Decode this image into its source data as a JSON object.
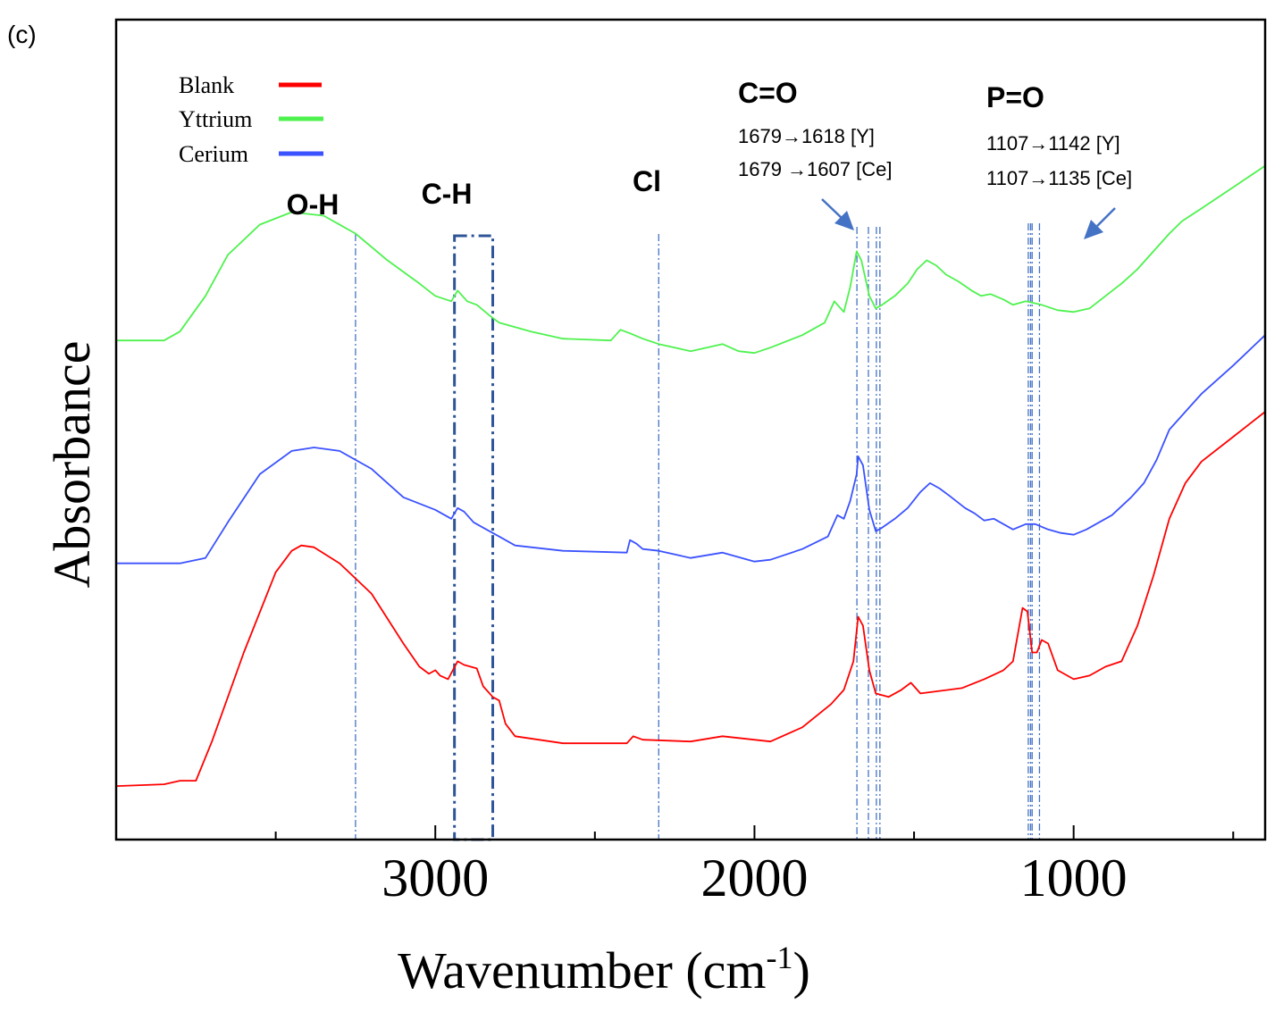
{
  "panel_label": "(c)",
  "chart_data": {
    "type": "line",
    "title": "",
    "xlabel": "Wavenumber (cm",
    "xlabel_superscript": "-1",
    "xlabel_close": ")",
    "ylabel": "Absorbance",
    "xlim": [
      4000,
      400
    ],
    "ylim": [
      0,
      4.6
    ],
    "x_ticks": [
      3000,
      2000,
      1000
    ],
    "x_minor_ticks": [
      3500,
      2500,
      1500,
      500
    ],
    "x_tick_labels": [
      "3000",
      "2000",
      "1000"
    ],
    "grid": false,
    "legend_position": "top-left",
    "series": [
      {
        "name": "Blank",
        "color": "#ff0000",
        "points": [
          [
            4000,
            0.3
          ],
          [
            3850,
            0.31
          ],
          [
            3800,
            0.33
          ],
          [
            3750,
            0.33
          ],
          [
            3700,
            0.55
          ],
          [
            3600,
            1.05
          ],
          [
            3500,
            1.5
          ],
          [
            3450,
            1.62
          ],
          [
            3420,
            1.65
          ],
          [
            3380,
            1.64
          ],
          [
            3300,
            1.55
          ],
          [
            3200,
            1.38
          ],
          [
            3100,
            1.1
          ],
          [
            3050,
            0.97
          ],
          [
            3020,
            0.93
          ],
          [
            3000,
            0.95
          ],
          [
            2985,
            0.92
          ],
          [
            2960,
            0.9
          ],
          [
            2930,
            1.0
          ],
          [
            2910,
            0.98
          ],
          [
            2870,
            0.96
          ],
          [
            2850,
            0.86
          ],
          [
            2820,
            0.8
          ],
          [
            2800,
            0.78
          ],
          [
            2780,
            0.65
          ],
          [
            2750,
            0.58
          ],
          [
            2600,
            0.54
          ],
          [
            2400,
            0.54
          ],
          [
            2380,
            0.58
          ],
          [
            2350,
            0.56
          ],
          [
            2200,
            0.55
          ],
          [
            2100,
            0.58
          ],
          [
            1950,
            0.55
          ],
          [
            1850,
            0.63
          ],
          [
            1760,
            0.76
          ],
          [
            1720,
            0.84
          ],
          [
            1690,
            1.0
          ],
          [
            1675,
            1.25
          ],
          [
            1660,
            1.2
          ],
          [
            1640,
            0.95
          ],
          [
            1620,
            0.82
          ],
          [
            1580,
            0.8
          ],
          [
            1540,
            0.84
          ],
          [
            1510,
            0.88
          ],
          [
            1480,
            0.82
          ],
          [
            1350,
            0.85
          ],
          [
            1280,
            0.9
          ],
          [
            1220,
            0.95
          ],
          [
            1190,
            1.0
          ],
          [
            1160,
            1.3
          ],
          [
            1145,
            1.28
          ],
          [
            1130,
            1.05
          ],
          [
            1115,
            1.05
          ],
          [
            1100,
            1.12
          ],
          [
            1080,
            1.1
          ],
          [
            1050,
            0.95
          ],
          [
            1000,
            0.9
          ],
          [
            950,
            0.92
          ],
          [
            900,
            0.97
          ],
          [
            850,
            1.0
          ],
          [
            800,
            1.2
          ],
          [
            750,
            1.48
          ],
          [
            700,
            1.8
          ],
          [
            650,
            2.0
          ],
          [
            600,
            2.12
          ],
          [
            500,
            2.26
          ],
          [
            400,
            2.4
          ]
        ]
      },
      {
        "name": "Cerium",
        "color": "#3b52ff",
        "points": [
          [
            4000,
            1.55
          ],
          [
            3800,
            1.55
          ],
          [
            3720,
            1.58
          ],
          [
            3650,
            1.78
          ],
          [
            3550,
            2.05
          ],
          [
            3450,
            2.18
          ],
          [
            3380,
            2.2
          ],
          [
            3300,
            2.18
          ],
          [
            3200,
            2.08
          ],
          [
            3100,
            1.92
          ],
          [
            3000,
            1.85
          ],
          [
            2950,
            1.8
          ],
          [
            2930,
            1.86
          ],
          [
            2910,
            1.84
          ],
          [
            2880,
            1.78
          ],
          [
            2850,
            1.75
          ],
          [
            2800,
            1.7
          ],
          [
            2750,
            1.65
          ],
          [
            2600,
            1.62
          ],
          [
            2400,
            1.61
          ],
          [
            2390,
            1.68
          ],
          [
            2370,
            1.66
          ],
          [
            2350,
            1.63
          ],
          [
            2300,
            1.62
          ],
          [
            2200,
            1.58
          ],
          [
            2100,
            1.61
          ],
          [
            2000,
            1.56
          ],
          [
            1950,
            1.57
          ],
          [
            1850,
            1.63
          ],
          [
            1770,
            1.7
          ],
          [
            1740,
            1.82
          ],
          [
            1720,
            1.8
          ],
          [
            1700,
            1.9
          ],
          [
            1680,
            2.05
          ],
          [
            1675,
            2.15
          ],
          [
            1660,
            2.1
          ],
          [
            1640,
            1.85
          ],
          [
            1620,
            1.73
          ],
          [
            1600,
            1.75
          ],
          [
            1560,
            1.8
          ],
          [
            1520,
            1.86
          ],
          [
            1480,
            1.95
          ],
          [
            1450,
            2.0
          ],
          [
            1420,
            1.97
          ],
          [
            1390,
            1.93
          ],
          [
            1340,
            1.86
          ],
          [
            1310,
            1.83
          ],
          [
            1280,
            1.79
          ],
          [
            1250,
            1.8
          ],
          [
            1220,
            1.77
          ],
          [
            1190,
            1.74
          ],
          [
            1150,
            1.77
          ],
          [
            1120,
            1.77
          ],
          [
            1080,
            1.74
          ],
          [
            1040,
            1.72
          ],
          [
            1000,
            1.71
          ],
          [
            960,
            1.74
          ],
          [
            920,
            1.78
          ],
          [
            880,
            1.82
          ],
          [
            820,
            1.92
          ],
          [
            780,
            2.0
          ],
          [
            740,
            2.13
          ],
          [
            700,
            2.3
          ],
          [
            650,
            2.4
          ],
          [
            600,
            2.5
          ],
          [
            500,
            2.66
          ],
          [
            400,
            2.83
          ]
        ]
      },
      {
        "name": "Yttrium",
        "color": "#4ef24e",
        "points": [
          [
            4000,
            2.8
          ],
          [
            3850,
            2.8
          ],
          [
            3800,
            2.85
          ],
          [
            3720,
            3.05
          ],
          [
            3650,
            3.28
          ],
          [
            3550,
            3.45
          ],
          [
            3450,
            3.52
          ],
          [
            3350,
            3.5
          ],
          [
            3250,
            3.4
          ],
          [
            3150,
            3.25
          ],
          [
            3050,
            3.12
          ],
          [
            3000,
            3.05
          ],
          [
            2950,
            3.02
          ],
          [
            2930,
            3.08
          ],
          [
            2900,
            3.02
          ],
          [
            2870,
            3.0
          ],
          [
            2830,
            2.94
          ],
          [
            2800,
            2.9
          ],
          [
            2700,
            2.85
          ],
          [
            2600,
            2.81
          ],
          [
            2450,
            2.8
          ],
          [
            2420,
            2.86
          ],
          [
            2390,
            2.84
          ],
          [
            2350,
            2.81
          ],
          [
            2300,
            2.78
          ],
          [
            2200,
            2.74
          ],
          [
            2100,
            2.78
          ],
          [
            2050,
            2.74
          ],
          [
            2000,
            2.73
          ],
          [
            1950,
            2.76
          ],
          [
            1850,
            2.83
          ],
          [
            1780,
            2.9
          ],
          [
            1750,
            3.02
          ],
          [
            1720,
            2.96
          ],
          [
            1700,
            3.1
          ],
          [
            1680,
            3.3
          ],
          [
            1665,
            3.25
          ],
          [
            1640,
            3.05
          ],
          [
            1620,
            2.98
          ],
          [
            1600,
            3.0
          ],
          [
            1560,
            3.05
          ],
          [
            1520,
            3.12
          ],
          [
            1490,
            3.2
          ],
          [
            1460,
            3.25
          ],
          [
            1430,
            3.22
          ],
          [
            1400,
            3.17
          ],
          [
            1360,
            3.13
          ],
          [
            1320,
            3.08
          ],
          [
            1290,
            3.05
          ],
          [
            1260,
            3.06
          ],
          [
            1220,
            3.03
          ],
          [
            1190,
            3.0
          ],
          [
            1150,
            3.02
          ],
          [
            1100,
            3.0
          ],
          [
            1050,
            2.97
          ],
          [
            1000,
            2.96
          ],
          [
            950,
            2.98
          ],
          [
            900,
            3.05
          ],
          [
            850,
            3.12
          ],
          [
            800,
            3.2
          ],
          [
            750,
            3.3
          ],
          [
            700,
            3.4
          ],
          [
            660,
            3.47
          ],
          [
            600,
            3.54
          ],
          [
            500,
            3.66
          ],
          [
            400,
            3.78
          ]
        ]
      }
    ],
    "reference_lines": {
      "oh": 3250,
      "ch_box": [
        2940,
        2820
      ],
      "cl": 2300,
      "co": [
        1679,
        1643,
        1618,
        1607
      ],
      "po": [
        1142,
        1135,
        1130,
        1107
      ]
    },
    "annotations": [
      {
        "label": "O-H",
        "x": 3250
      },
      {
        "label": "C-H",
        "x": 2880
      },
      {
        "label": "Cl",
        "x": 2300
      },
      {
        "label": "C=O",
        "lines": [
          "1679→1618 [Y]",
          "1679 →1607 [Ce]"
        ]
      },
      {
        "label": "P=O",
        "lines": [
          "1107→1142 [Y]",
          "1107→1135 [Ce]"
        ]
      }
    ]
  }
}
